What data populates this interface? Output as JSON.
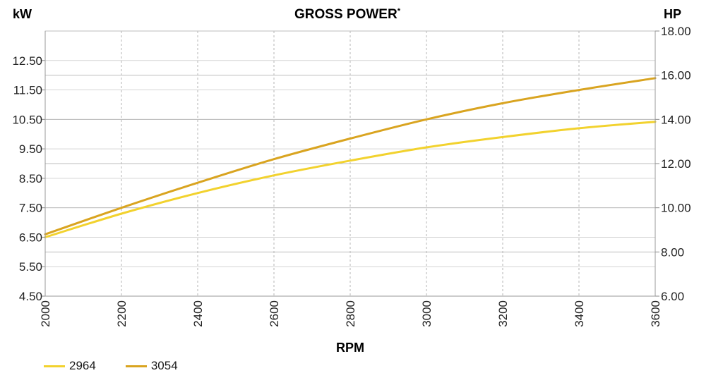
{
  "chart_data": {
    "type": "line",
    "title": "GROSS POWER",
    "title_mark": "*",
    "xlabel": "RPM",
    "ylabel_left": "kW",
    "ylabel_right": "HP",
    "x_ticks": [
      "2000",
      "2200",
      "2400",
      "2600",
      "2800",
      "3000",
      "3200",
      "3400",
      "3600"
    ],
    "xlim": [
      2000,
      3600
    ],
    "y_left_ticks": [
      "4.50",
      "5.50",
      "6.50",
      "7.50",
      "8.50",
      "9.50",
      "10.50",
      "11.50",
      "12.50"
    ],
    "y_left_lim": [
      4.5,
      13.5
    ],
    "y_right_ticks": [
      "6.00",
      "8.00",
      "10.00",
      "12.00",
      "14.00",
      "16.00",
      "18.00"
    ],
    "y_right_lim": [
      6,
      18
    ],
    "grid": true,
    "legend_position": "bottom-left",
    "series": [
      {
        "name": "2964",
        "color": "#f2d22e",
        "x": [
          2000,
          2200,
          2400,
          2600,
          2800,
          3000,
          3200,
          3400,
          3600
        ],
        "y_kW": [
          6.5,
          7.3,
          8.0,
          8.6,
          9.1,
          9.55,
          9.9,
          10.2,
          10.42
        ]
      },
      {
        "name": "3054",
        "color": "#d9a420",
        "x": [
          2000,
          2200,
          2400,
          2600,
          2800,
          3000,
          3200,
          3400,
          3600
        ],
        "y_kW": [
          6.6,
          7.5,
          8.35,
          9.15,
          9.85,
          10.5,
          11.05,
          11.5,
          11.9
        ]
      }
    ]
  }
}
